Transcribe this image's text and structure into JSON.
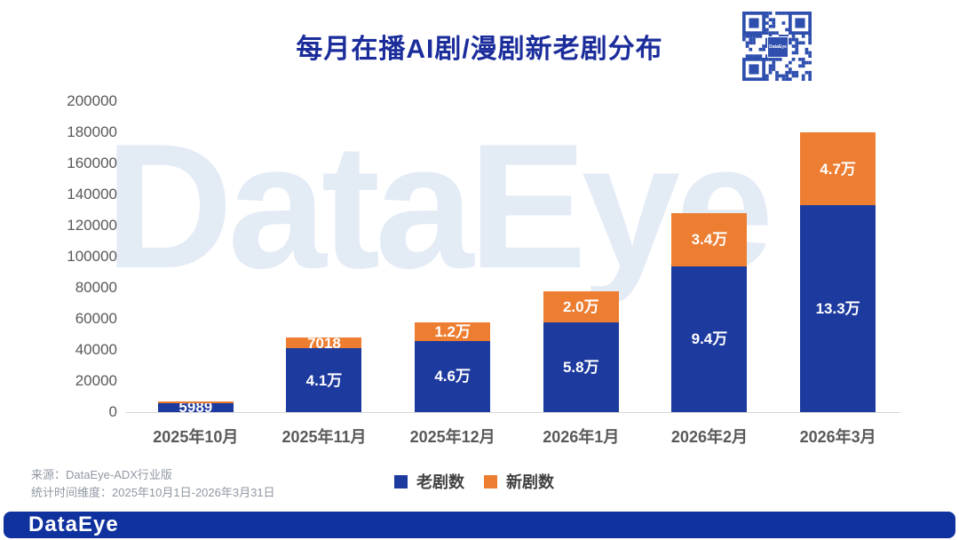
{
  "title": "每月在播AI剧/漫剧新老剧分布",
  "watermark": "DataEye",
  "qr": {
    "center_label": "DataEye",
    "module_color": "#2e4fae"
  },
  "chart_data": {
    "type": "bar",
    "stacked": true,
    "title": "每月在播AI剧/漫剧新老剧分布",
    "categories": [
      "2025年10月",
      "2025年11月",
      "2025年12月",
      "2026年1月",
      "2026年2月",
      "2026年3月"
    ],
    "series": [
      {
        "name": "老剧数",
        "color": "#1d3a9e",
        "values": [
          5989,
          41000,
          46000,
          58000,
          94000,
          133000
        ],
        "labels": [
          "5989",
          "4.1万",
          "4.6万",
          "5.8万",
          "9.4万",
          "13.3万"
        ]
      },
      {
        "name": "新剧数",
        "color": "#ed7d31",
        "values": [
          800,
          7018,
          12000,
          20000,
          34000,
          47000
        ],
        "labels": [
          "",
          "7018",
          "1.2万",
          "2.0万",
          "3.4万",
          "4.7万"
        ]
      }
    ],
    "ylim": [
      0,
      200000
    ],
    "y_ticks": [
      0,
      20000,
      40000,
      60000,
      80000,
      100000,
      120000,
      140000,
      160000,
      180000,
      200000
    ],
    "grid": false,
    "legend_position": "bottom"
  },
  "legend": {
    "items": [
      {
        "label": "老剧数",
        "color": "#1d3a9e"
      },
      {
        "label": "新剧数",
        "color": "#ed7d31"
      }
    ]
  },
  "footer": {
    "source": "来源：DataEye-ADX行业版",
    "time_range": "统计时间维度：2025年10月1日-2026年3月31日"
  },
  "brand_bar": {
    "logo": "DataEye",
    "color": "#10329e"
  }
}
